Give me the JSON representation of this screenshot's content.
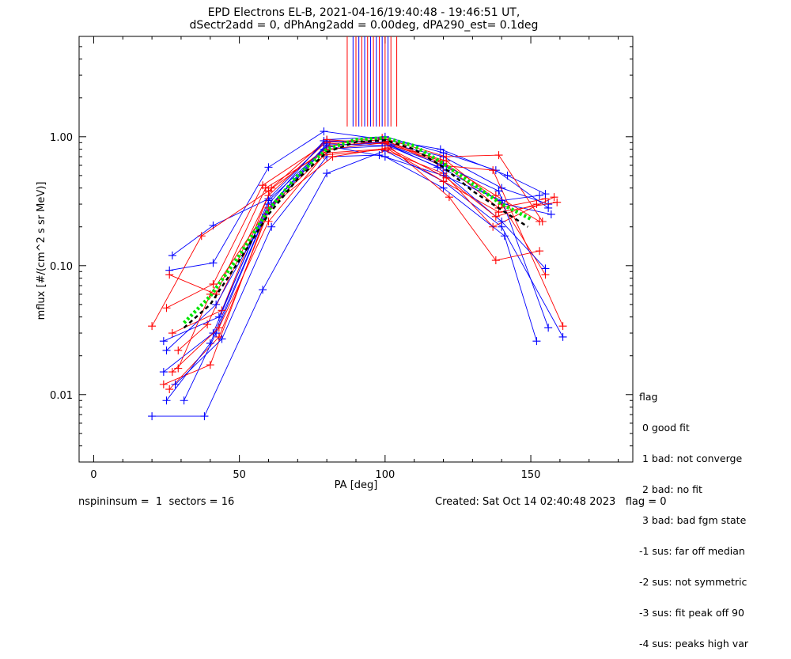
{
  "header": {
    "title_line1": "EPD Electrons EL-B, 2021-04-16/19:40:48 - 19:46:51 UT,",
    "title_line2": "dSectr2add = 0, dPhAng2add = 0.00deg, dPA290_est=   0.1deg"
  },
  "legend": {
    "title": "flag",
    "items": [
      " 0 good fit",
      " 1 bad: not converge",
      " 2 bad: no fit",
      " 3 bad: bad fgm state",
      "-1 sus: far off median",
      "-2 sus: not symmetric",
      "-3 sus: fit peak off 90",
      "-4 sus: peaks high var"
    ]
  },
  "footer": {
    "left": "nspininsum =  1  sectors = 16",
    "right": "Created: Sat Oct 14 02:40:48 2023   flag = 0"
  },
  "colors": {
    "blue": "#0000ff",
    "red": "#ff0000",
    "green": "#00e600",
    "black": "#000000"
  },
  "chart_data": {
    "type": "line",
    "xlabel": "PA [deg]",
    "ylabel": "mflux [#/(cm^2 s sr MeV)]",
    "xlim": [
      -5,
      185
    ],
    "ylim": [
      0.003,
      6
    ],
    "yscale": "log",
    "xticks": [
      0,
      50,
      100,
      150
    ],
    "yticks": [
      0.01,
      0.1,
      1.0
    ],
    "ytick_labels": [
      "0.01",
      "0.10",
      "1.00"
    ],
    "series": [
      {
        "color": "blue",
        "x": [
          24,
          41,
          60,
          80,
          100,
          120,
          140,
          156
        ],
        "y": [
          0.015,
          0.03,
          0.32,
          0.85,
          0.9,
          0.7,
          0.4,
          0.3
        ]
      },
      {
        "color": "red",
        "x": [
          26,
          43,
          61,
          81,
          99,
          119,
          138,
          153
        ],
        "y": [
          0.011,
          0.028,
          0.3,
          0.88,
          0.95,
          0.65,
          0.35,
          0.22
        ]
      },
      {
        "color": "blue",
        "x": [
          25,
          40,
          59,
          79,
          101,
          121,
          141,
          157
        ],
        "y": [
          0.009,
          0.025,
          0.25,
          0.8,
          0.85,
          0.55,
          0.3,
          0.25
        ]
      },
      {
        "color": "red",
        "x": [
          29,
          39,
          60,
          80,
          100,
          120,
          139,
          155
        ],
        "y": [
          0.022,
          0.035,
          0.35,
          0.92,
          0.9,
          0.62,
          0.28,
          0.33
        ]
      },
      {
        "color": "blue",
        "x": [
          26,
          41,
          60,
          79,
          100,
          119,
          142,
          155
        ],
        "y": [
          0.092,
          0.105,
          0.58,
          1.1,
          0.95,
          0.8,
          0.5,
          0.36
        ]
      },
      {
        "color": "red",
        "x": [
          25,
          41,
          58,
          80,
          99,
          121,
          139,
          154
        ],
        "y": [
          0.047,
          0.072,
          0.42,
          0.9,
          0.98,
          0.7,
          0.72,
          0.22
        ]
      },
      {
        "color": "blue",
        "x": [
          27,
          41,
          60,
          80,
          100,
          120,
          138,
          156
        ],
        "y": [
          0.12,
          0.205,
          0.33,
          0.95,
          1.0,
          0.75,
          0.55,
          0.28
        ]
      },
      {
        "color": "red",
        "x": [
          20,
          37,
          60,
          81,
          101,
          119,
          137,
          161
        ],
        "y": [
          0.034,
          0.17,
          0.38,
          0.85,
          0.92,
          0.6,
          0.55,
          0.034
        ]
      },
      {
        "color": "blue",
        "x": [
          20,
          38,
          58,
          80,
          100,
          120,
          140,
          161
        ],
        "y": [
          0.0068,
          0.0068,
          0.065,
          0.52,
          0.78,
          0.45,
          0.2,
          0.028
        ]
      },
      {
        "color": "red",
        "x": [
          24,
          40,
          60,
          80,
          99,
          120,
          137,
          158
        ],
        "y": [
          0.012,
          0.017,
          0.28,
          0.75,
          0.8,
          0.52,
          0.2,
          0.34
        ]
      },
      {
        "color": "blue",
        "x": [
          31,
          42,
          60,
          80,
          100,
          120,
          141,
          152
        ],
        "y": [
          0.009,
          0.03,
          0.28,
          0.85,
          0.7,
          0.4,
          0.17,
          0.026
        ]
      },
      {
        "color": "red",
        "x": [
          27,
          44,
          61,
          80,
          100,
          121,
          140,
          155
        ],
        "y": [
          0.03,
          0.045,
          0.4,
          0.95,
          0.88,
          0.65,
          0.3,
          0.085
        ]
      },
      {
        "color": "blue",
        "x": [
          24,
          43,
          60,
          79,
          99,
          120,
          139,
          156
        ],
        "y": [
          0.026,
          0.04,
          0.3,
          0.93,
          0.9,
          0.6,
          0.38,
          0.033
        ]
      },
      {
        "color": "red",
        "x": [
          26,
          42,
          59,
          81,
          100,
          122,
          138,
          153
        ],
        "y": [
          0.085,
          0.06,
          0.4,
          0.8,
          0.9,
          0.34,
          0.11,
          0.13
        ]
      },
      {
        "color": "blue",
        "x": [
          28,
          44,
          61,
          80,
          98,
          120,
          140,
          153
        ],
        "y": [
          0.012,
          0.027,
          0.2,
          0.7,
          0.72,
          0.5,
          0.32,
          0.35
        ]
      },
      {
        "color": "red",
        "x": [
          27,
          43,
          60,
          79,
          101,
          120,
          139,
          159
        ],
        "y": [
          0.015,
          0.033,
          0.22,
          0.72,
          0.8,
          0.45,
          0.26,
          0.31
        ]
      },
      {
        "color": "blue",
        "x": [
          25,
          42,
          61,
          80,
          102,
          118,
          140,
          155
        ],
        "y": [
          0.022,
          0.05,
          0.3,
          0.88,
          0.85,
          0.58,
          0.22,
          0.095
        ]
      },
      {
        "color": "red",
        "x": [
          29,
          40,
          60,
          82,
          101,
          121,
          138,
          152
        ],
        "y": [
          0.016,
          0.06,
          0.28,
          0.7,
          0.82,
          0.48,
          0.24,
          0.3
        ]
      }
    ],
    "vertical_lines": {
      "blue_x": [
        89,
        91,
        93,
        95,
        97,
        99,
        101
      ],
      "red_x": [
        87,
        90,
        92,
        94,
        96,
        98,
        100,
        102,
        104
      ],
      "y_top": 6,
      "y_bottom": 1.2
    },
    "fit_green": {
      "x": [
        31,
        40,
        50,
        60,
        70,
        80,
        90,
        100,
        110,
        120,
        130,
        140,
        150
      ],
      "y": [
        0.036,
        0.058,
        0.12,
        0.27,
        0.5,
        0.8,
        0.95,
        0.98,
        0.85,
        0.62,
        0.43,
        0.3,
        0.23
      ]
    },
    "fit_black": {
      "x": [
        31,
        40,
        50,
        60,
        70,
        80,
        90,
        100,
        110,
        120,
        130,
        140,
        149
      ],
      "y": [
        0.033,
        0.05,
        0.11,
        0.25,
        0.47,
        0.76,
        0.91,
        0.94,
        0.8,
        0.58,
        0.38,
        0.27,
        0.2
      ]
    }
  }
}
